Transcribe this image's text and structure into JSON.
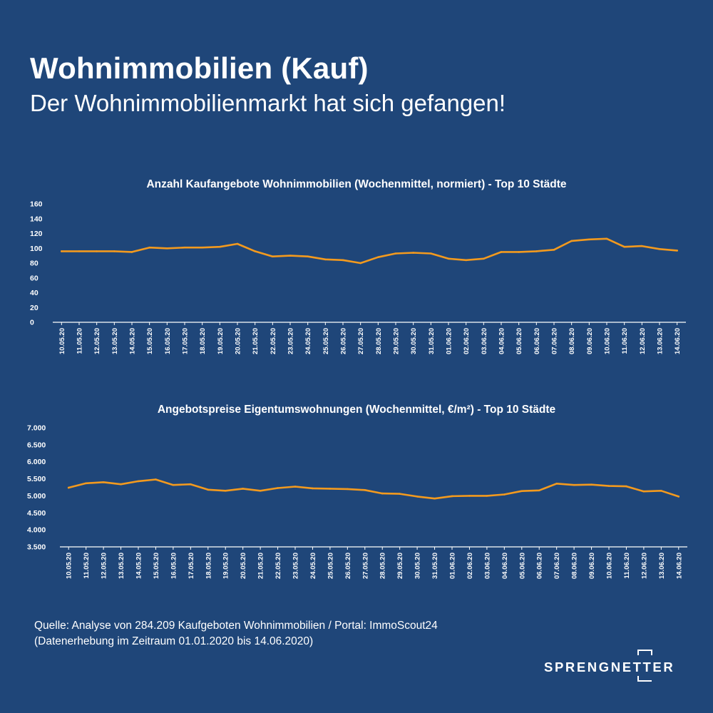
{
  "header": {
    "title": "Wohnimmobilien (Kauf)",
    "subtitle": "Der Wohnimmobilienmarkt hat sich gefangen!"
  },
  "colors": {
    "background": "#1f4679",
    "line": "#f39a1e",
    "text": "#ffffff"
  },
  "chart_data": [
    {
      "type": "line",
      "title": "Anzahl Kaufangebote Wohnimmobilien (Wochenmittel, normiert) - Top 10 Städte",
      "xlabel": "",
      "ylabel": "",
      "ylim": [
        0,
        160
      ],
      "yticks": [
        "0",
        "20",
        "40",
        "60",
        "80",
        "100",
        "120",
        "140",
        "160"
      ],
      "grid": false,
      "x": [
        "10.05.20",
        "11.05.20",
        "12.05.20",
        "13.05.20",
        "14.05.20",
        "15.05.20",
        "16.05.20",
        "17.05.20",
        "18.05.20",
        "19.05.20",
        "20.05.20",
        "21.05.20",
        "22.05.20",
        "23.05.20",
        "24.05.20",
        "25.05.20",
        "26.05.20",
        "27.05.20",
        "28.05.20",
        "29.05.20",
        "30.05.20",
        "31.05.20",
        "01.06.20",
        "02.06.20",
        "03.06.20",
        "04.06.20",
        "05.06.20",
        "06.06.20",
        "07.06.20",
        "08.06.20",
        "09.06.20",
        "10.06.20",
        "11.06.20",
        "12.06.20",
        "13.06.20",
        "14.06.20"
      ],
      "series": [
        {
          "values": [
            96,
            96,
            96,
            96,
            95,
            101,
            100,
            101,
            101,
            102,
            106,
            96,
            89,
            90,
            89,
            85,
            84,
            80,
            88,
            93,
            94,
            93,
            86,
            84,
            86,
            95,
            95,
            96,
            98,
            110,
            112,
            113,
            102,
            103,
            99,
            97
          ]
        }
      ]
    },
    {
      "type": "line",
      "title": "Angebotspreise Eigentumswohnungen (Wochenmittel, €/m²) - Top 10 Städte",
      "xlabel": "",
      "ylabel": "",
      "ylim": [
        3500,
        7000
      ],
      "yticks": [
        "3.500",
        "4.000",
        "4.500",
        "5.000",
        "5.500",
        "6.000",
        "6.500",
        "7.000"
      ],
      "grid": false,
      "x": [
        "10.05.20",
        "11.05.20",
        "12.05.20",
        "13.05.20",
        "14.05.20",
        "15.05.20",
        "16.05.20",
        "17.05.20",
        "18.05.20",
        "19.05.20",
        "20.05.20",
        "21.05.20",
        "22.05.20",
        "23.05.20",
        "24.05.20",
        "25.05.20",
        "26.05.20",
        "27.05.20",
        "28.05.20",
        "29.05.20",
        "30.05.20",
        "31.05.20",
        "01.06.20",
        "02.06.20",
        "03.06.20",
        "04.06.20",
        "05.06.20",
        "06.06.20",
        "07.06.20",
        "08.06.20",
        "09.06.20",
        "10.06.20",
        "11.06.20",
        "12.06.20",
        "13.06.20",
        "14.06.20"
      ],
      "series": [
        {
          "values": [
            5240,
            5370,
            5400,
            5340,
            5430,
            5480,
            5320,
            5340,
            5180,
            5150,
            5210,
            5150,
            5230,
            5270,
            5220,
            5210,
            5200,
            5170,
            5070,
            5060,
            4980,
            4920,
            4990,
            5000,
            5000,
            5040,
            5140,
            5160,
            5360,
            5320,
            5330,
            5290,
            5280,
            5130,
            5150,
            4980
          ]
        }
      ]
    }
  ],
  "source": {
    "line1": "Quelle: Analyse von 284.209 Kaufgeboten Wohnimmobilien / Portal: ImmoScout24",
    "line2": "(Datenerhebung im Zeitraum 01.01.2020 bis 14.06.2020)"
  },
  "logo": {
    "text": "SPRENGNETTER",
    "icon": "bracket-logo-icon"
  }
}
